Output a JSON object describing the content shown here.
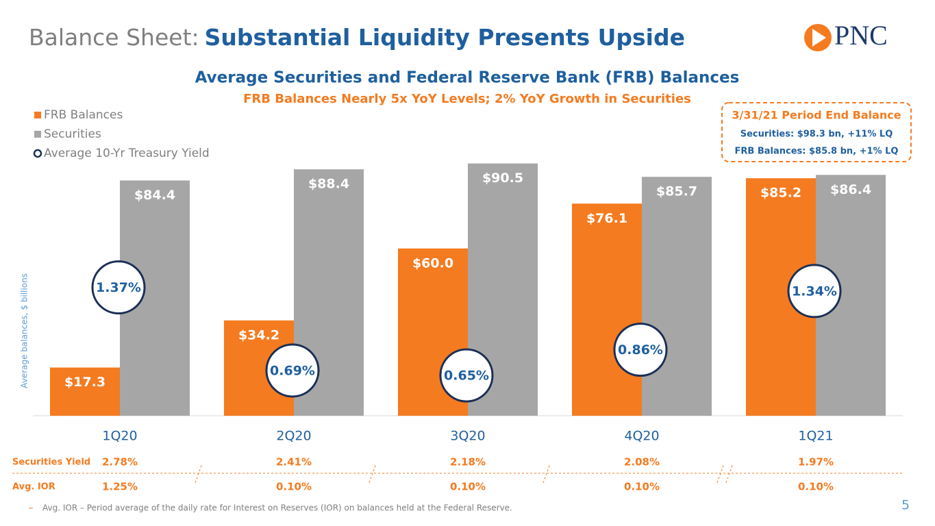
{
  "header": {
    "title_lead": "Balance Sheet:",
    "title_main": "Substantial Liquidity Presents Upside",
    "logo": "PNC"
  },
  "chart_data": {
    "type": "bar",
    "title": "Average Securities and Federal Reserve Bank (FRB) Balances",
    "subtitle": "FRB Balances Nearly 5x YoY Levels; 2% YoY Growth in Securities",
    "ylabel": "Average balances, $ billions",
    "categories": [
      "1Q20",
      "2Q20",
      "3Q20",
      "4Q20",
      "1Q21"
    ],
    "ylim": [
      0,
      100
    ],
    "y2lim": [
      0.32,
      2.6
    ],
    "series": [
      {
        "name": "FRB Balances",
        "color": "#f47b20",
        "values": [
          17.3,
          34.2,
          60.0,
          76.1,
          85.2
        ],
        "value_labels": [
          "$17.3",
          "$34.2",
          "$60.0",
          "$76.1",
          "$85.2"
        ]
      },
      {
        "name": "Securities",
        "color": "#a6a6a6",
        "values": [
          84.4,
          88.4,
          90.5,
          85.7,
          86.4
        ],
        "value_labels": [
          "$84.4",
          "$88.4",
          "$90.5",
          "$85.7",
          "$86.4"
        ]
      },
      {
        "name": "Average 10-Yr Treasury Yield",
        "color": "#1b2f55",
        "axis": "y2",
        "type": "circle",
        "values": [
          1.37,
          0.69,
          0.65,
          0.86,
          1.34
        ],
        "value_labels": [
          "1.37%",
          "0.69%",
          "0.65%",
          "0.86%",
          "1.34%"
        ]
      }
    ],
    "legend": "top-left"
  },
  "callout": {
    "title": "3/31/21 Period End Balance",
    "lines": [
      "Securities: $98.3 bn, +11% LQ",
      "FRB Balances: $85.8 bn, +1%  LQ"
    ]
  },
  "table": {
    "rows": [
      {
        "label": "Securities Yield",
        "values": [
          "2.78%",
          "2.41%",
          "2.18%",
          "2.08%",
          "1.97%"
        ]
      },
      {
        "label": "Avg. IOR",
        "values": [
          "1.25%",
          "0.10%",
          "0.10%",
          "0.10%",
          "0.10%"
        ]
      }
    ]
  },
  "footnote": "Avg. IOR – Period average of the daily rate for Interest on Reserves (IOR) on balances held at the Federal Reserve.",
  "page_number": "5"
}
